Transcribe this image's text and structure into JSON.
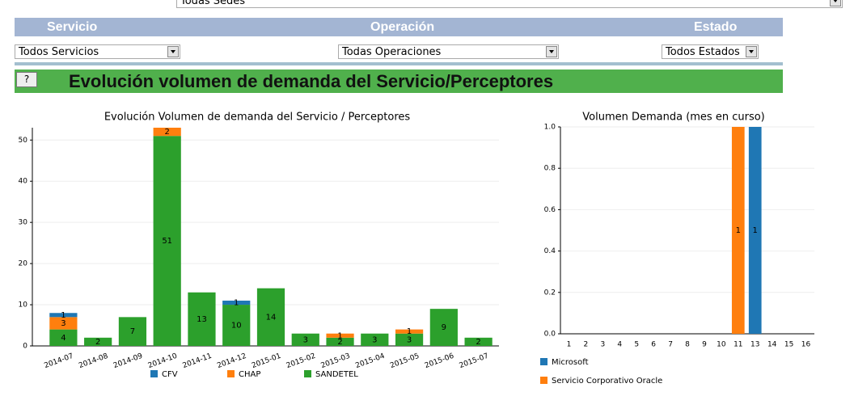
{
  "ui": {
    "sede_select": "Todas Sedes",
    "filter_headers": [
      "Servicio",
      "Operación",
      "Estado"
    ],
    "filter_selects": [
      "Todos Servicios",
      "Todas Operaciones",
      "Todos Estados"
    ],
    "help_button": "?",
    "banner_title": "Evolución volumen de demanda del Servicio/Perceptores"
  },
  "chart_data": [
    {
      "type": "bar",
      "stacked": true,
      "title": "Evolución Volumen de demanda del Servicio / Perceptores",
      "categories": [
        "2014-07",
        "2014-08",
        "2014-09",
        "2014-10",
        "2014-11",
        "2014-12",
        "2015-01",
        "2015-02",
        "2015-03",
        "2015-04",
        "2015-05",
        "2015-06",
        "2015-07"
      ],
      "series": [
        {
          "name": "CFV",
          "color": "#1f77b4",
          "values": [
            1,
            null,
            null,
            null,
            null,
            1,
            null,
            null,
            null,
            null,
            null,
            null,
            null
          ]
        },
        {
          "name": "CHAP",
          "color": "#ff7f0e",
          "values": [
            3,
            null,
            null,
            2,
            null,
            null,
            null,
            null,
            1,
            null,
            1,
            null,
            null
          ]
        },
        {
          "name": "SANDETEL",
          "color": "#2ca02c",
          "values": [
            4,
            2,
            7,
            51,
            13,
            10,
            14,
            3,
            2,
            3,
            3,
            9,
            2
          ]
        }
      ],
      "ylim": [
        0,
        53
      ],
      "yticks": [
        0,
        10,
        20,
        30,
        40,
        50
      ],
      "grid": true,
      "legend": "bottom"
    },
    {
      "type": "bar",
      "title": "Volumen Demanda (mes en curso)",
      "categories": [
        "1",
        "2",
        "3",
        "4",
        "5",
        "6",
        "7",
        "8",
        "9",
        "10",
        "11",
        "13",
        "14",
        "15",
        "16"
      ],
      "series": [
        {
          "name": "Microsoft",
          "color": "#1f77b4",
          "values": [
            null,
            null,
            null,
            null,
            null,
            null,
            null,
            null,
            null,
            null,
            null,
            1,
            null,
            null,
            null
          ]
        },
        {
          "name": "Servicio Corporativo Oracle",
          "color": "#ff7f0e",
          "values": [
            null,
            null,
            null,
            null,
            null,
            null,
            null,
            null,
            null,
            null,
            1,
            null,
            null,
            null,
            null
          ]
        }
      ],
      "ylim": [
        0,
        1
      ],
      "yticks": [
        {
          "value": 0,
          "label": "0.0"
        },
        {
          "value": 0.2,
          "label": "0.2"
        },
        {
          "value": 0.4,
          "label": "0.4"
        },
        {
          "value": 0.6,
          "label": "0.6"
        },
        {
          "value": 0.8,
          "label": "0.8"
        },
        {
          "value": 1,
          "label": "1.0"
        }
      ],
      "grid": true,
      "legend": "bottom"
    }
  ]
}
